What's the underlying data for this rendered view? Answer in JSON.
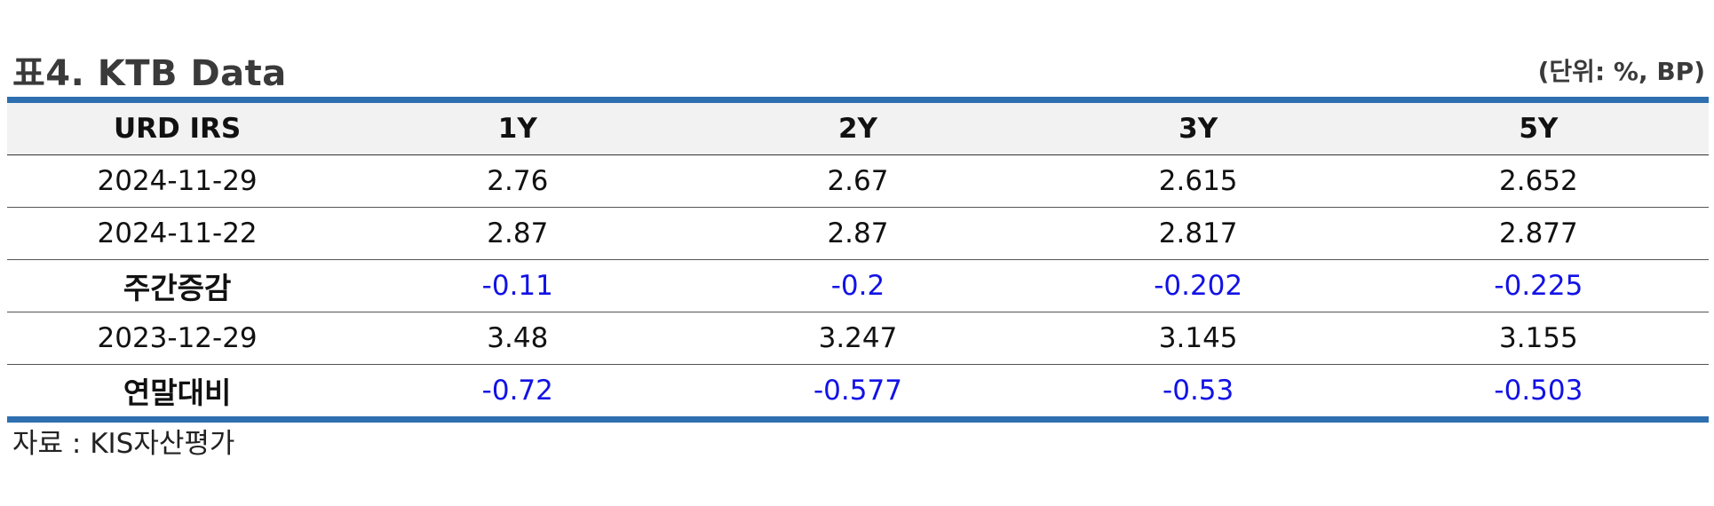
{
  "header": {
    "title": "표4. KTB Data",
    "unit": "(단위: %, BP)"
  },
  "table": {
    "columns": [
      "URD IRS",
      "1Y",
      "2Y",
      "3Y",
      "5Y"
    ],
    "rows": [
      {
        "label": "2024-11-29",
        "values": [
          "2.76",
          "2.67",
          "2.615",
          "2.652"
        ]
      },
      {
        "label": "2024-11-22",
        "values": [
          "2.87",
          "2.87",
          "2.817",
          "2.877"
        ]
      },
      {
        "label": "주간증감",
        "values": [
          "-0.11",
          "-0.2",
          "-0.202",
          "-0.225"
        ]
      },
      {
        "label": "2023-12-29",
        "values": [
          "3.48",
          "3.247",
          "3.145",
          "3.155"
        ]
      },
      {
        "label": "연말대비",
        "values": [
          "-0.72",
          "-0.577",
          "-0.53",
          "-0.503"
        ]
      }
    ]
  },
  "colors": {
    "rule": "#2e6fb0",
    "header_bg": "#f2f2f2",
    "negative": "#1212e6"
  },
  "footer": {
    "source": "자료 : KIS자산평가"
  }
}
